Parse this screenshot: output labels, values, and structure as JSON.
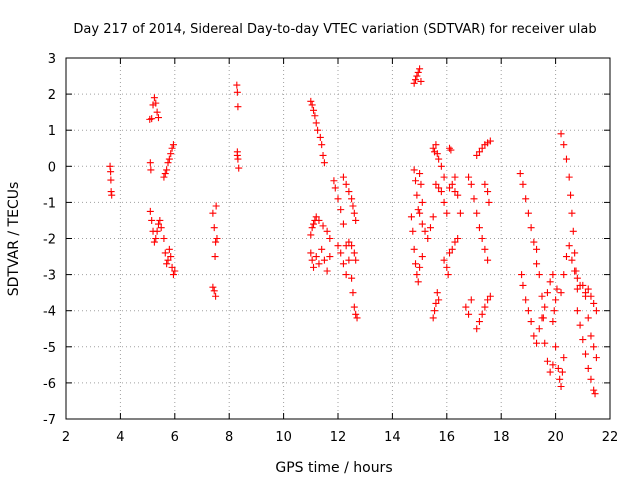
{
  "chart_data": {
    "type": "scatter",
    "title": "Day 217 of 2014, Sidereal Day-to-day VTEC variation (SDTVAR) for receiver ulab",
    "xlabel": "GPS time / hours",
    "ylabel": "SDTVAR / TECUs",
    "xlim": [
      2,
      22
    ],
    "ylim": [
      -7,
      3
    ],
    "xticks": [
      2,
      4,
      6,
      8,
      10,
      12,
      14,
      16,
      18,
      20,
      22
    ],
    "yticks": [
      -7,
      -6,
      -5,
      -4,
      -3,
      -2,
      -1,
      0,
      1,
      2,
      3
    ],
    "grid": true,
    "marker": "+",
    "color": "#ff0000",
    "series": [
      {
        "name": "SDTVAR",
        "points": [
          [
            3.62,
            0.0
          ],
          [
            3.64,
            -0.15
          ],
          [
            3.65,
            -0.38
          ],
          [
            3.66,
            -0.7
          ],
          [
            3.68,
            -0.8
          ],
          [
            5.08,
            1.3
          ],
          [
            5.15,
            1.32
          ],
          [
            5.2,
            1.7
          ],
          [
            5.25,
            1.9
          ],
          [
            5.3,
            1.75
          ],
          [
            5.35,
            1.5
          ],
          [
            5.4,
            1.35
          ],
          [
            5.1,
            0.1
          ],
          [
            5.12,
            -0.1
          ],
          [
            5.1,
            -1.25
          ],
          [
            5.15,
            -1.5
          ],
          [
            5.2,
            -1.8
          ],
          [
            5.25,
            -2.1
          ],
          [
            5.3,
            -2.0
          ],
          [
            5.35,
            -1.8
          ],
          [
            5.4,
            -1.6
          ],
          [
            5.45,
            -1.5
          ],
          [
            5.5,
            -1.7
          ],
          [
            5.6,
            -0.3
          ],
          [
            5.65,
            -0.2
          ],
          [
            5.7,
            -0.1
          ],
          [
            5.75,
            0.1
          ],
          [
            5.8,
            0.2
          ],
          [
            5.85,
            0.35
          ],
          [
            5.9,
            0.5
          ],
          [
            5.95,
            0.6
          ],
          [
            5.6,
            -2.0
          ],
          [
            5.65,
            -2.4
          ],
          [
            5.7,
            -2.7
          ],
          [
            5.75,
            -2.6
          ],
          [
            5.8,
            -2.3
          ],
          [
            5.85,
            -2.5
          ],
          [
            5.9,
            -2.8
          ],
          [
            5.95,
            -3.0
          ],
          [
            6.0,
            -2.9
          ],
          [
            7.4,
            -1.3
          ],
          [
            7.45,
            -1.7
          ],
          [
            7.5,
            -2.1
          ],
          [
            7.48,
            -2.5
          ],
          [
            7.52,
            -1.1
          ],
          [
            7.55,
            -2.0
          ],
          [
            7.4,
            -3.35
          ],
          [
            7.45,
            -3.45
          ],
          [
            7.5,
            -3.6
          ],
          [
            8.28,
            2.25
          ],
          [
            8.3,
            2.05
          ],
          [
            8.32,
            1.65
          ],
          [
            8.3,
            0.4
          ],
          [
            8.32,
            0.2
          ],
          [
            8.35,
            -0.05
          ],
          [
            8.3,
            0.3
          ],
          [
            11.0,
            1.8
          ],
          [
            11.05,
            1.7
          ],
          [
            11.1,
            1.55
          ],
          [
            11.15,
            1.4
          ],
          [
            11.2,
            1.2
          ],
          [
            11.25,
            1.0
          ],
          [
            11.35,
            0.8
          ],
          [
            11.4,
            0.6
          ],
          [
            11.45,
            0.3
          ],
          [
            11.5,
            0.1
          ],
          [
            11.0,
            -1.9
          ],
          [
            11.05,
            -1.7
          ],
          [
            11.1,
            -1.6
          ],
          [
            11.15,
            -1.5
          ],
          [
            11.2,
            -1.4
          ],
          [
            11.3,
            -1.5
          ],
          [
            11.45,
            -1.65
          ],
          [
            11.6,
            -1.8
          ],
          [
            11.7,
            -2.0
          ],
          [
            11.0,
            -2.4
          ],
          [
            11.05,
            -2.6
          ],
          [
            11.1,
            -2.8
          ],
          [
            11.2,
            -2.5
          ],
          [
            11.3,
            -2.7
          ],
          [
            11.4,
            -2.3
          ],
          [
            11.5,
            -2.6
          ],
          [
            11.6,
            -2.9
          ],
          [
            11.7,
            -2.5
          ],
          [
            11.85,
            -0.4
          ],
          [
            11.9,
            -0.6
          ],
          [
            12.0,
            -0.9
          ],
          [
            12.1,
            -1.2
          ],
          [
            12.2,
            -1.6
          ],
          [
            12.3,
            -2.2
          ],
          [
            12.4,
            -2.6
          ],
          [
            12.5,
            -3.1
          ],
          [
            12.55,
            -3.5
          ],
          [
            12.6,
            -3.9
          ],
          [
            12.65,
            -4.1
          ],
          [
            12.7,
            -4.2
          ],
          [
            12.2,
            -0.3
          ],
          [
            12.3,
            -0.5
          ],
          [
            12.4,
            -0.7
          ],
          [
            12.5,
            -0.9
          ],
          [
            12.55,
            -1.1
          ],
          [
            12.6,
            -1.3
          ],
          [
            12.65,
            -1.5
          ],
          [
            12.4,
            -2.1
          ],
          [
            12.5,
            -2.2
          ],
          [
            12.6,
            -2.4
          ],
          [
            12.65,
            -2.6
          ],
          [
            12.0,
            -2.2
          ],
          [
            12.1,
            -2.4
          ],
          [
            12.2,
            -2.7
          ],
          [
            12.3,
            -3.0
          ],
          [
            14.8,
            2.3
          ],
          [
            14.85,
            2.4
          ],
          [
            14.9,
            2.5
          ],
          [
            14.95,
            2.6
          ],
          [
            15.0,
            2.7
          ],
          [
            15.05,
            2.35
          ],
          [
            14.8,
            -0.1
          ],
          [
            14.85,
            -0.4
          ],
          [
            14.9,
            -0.8
          ],
          [
            14.95,
            -1.2
          ],
          [
            15.0,
            -0.2
          ],
          [
            15.05,
            -0.5
          ],
          [
            15.1,
            -1.0
          ],
          [
            14.7,
            -1.4
          ],
          [
            14.75,
            -1.8
          ],
          [
            14.8,
            -2.3
          ],
          [
            14.85,
            -2.7
          ],
          [
            14.9,
            -3.0
          ],
          [
            14.95,
            -3.2
          ],
          [
            15.0,
            -2.8
          ],
          [
            15.1,
            -2.5
          ],
          [
            15.0,
            -1.3
          ],
          [
            15.1,
            -1.6
          ],
          [
            15.2,
            -1.8
          ],
          [
            15.3,
            -2.0
          ],
          [
            15.4,
            -1.7
          ],
          [
            15.5,
            -1.4
          ],
          [
            15.5,
            -4.2
          ],
          [
            15.55,
            -4.0
          ],
          [
            15.6,
            -3.8
          ],
          [
            15.65,
            -3.5
          ],
          [
            15.7,
            -3.7
          ],
          [
            15.5,
            0.5
          ],
          [
            15.55,
            0.4
          ],
          [
            15.6,
            0.6
          ],
          [
            15.65,
            0.35
          ],
          [
            15.7,
            0.2
          ],
          [
            15.8,
            0.0
          ],
          [
            15.9,
            -0.3
          ],
          [
            15.6,
            -0.5
          ],
          [
            15.7,
            -0.6
          ],
          [
            15.8,
            -0.7
          ],
          [
            15.9,
            -1.0
          ],
          [
            16.0,
            -1.3
          ],
          [
            16.1,
            -0.6
          ],
          [
            16.2,
            -0.5
          ],
          [
            16.3,
            -0.7
          ],
          [
            15.9,
            -2.6
          ],
          [
            16.0,
            -2.8
          ],
          [
            16.05,
            -3.0
          ],
          [
            16.1,
            -2.4
          ],
          [
            16.2,
            -2.3
          ],
          [
            16.3,
            -2.1
          ],
          [
            16.4,
            -2.0
          ],
          [
            16.1,
            0.5
          ],
          [
            16.15,
            0.45
          ],
          [
            16.3,
            -0.3
          ],
          [
            16.4,
            -0.8
          ],
          [
            16.5,
            -1.3
          ],
          [
            16.8,
            -0.3
          ],
          [
            16.9,
            -0.5
          ],
          [
            17.0,
            -0.9
          ],
          [
            17.1,
            -1.3
          ],
          [
            17.2,
            -1.7
          ],
          [
            17.3,
            -2.0
          ],
          [
            17.4,
            -2.3
          ],
          [
            17.5,
            -2.6
          ],
          [
            16.7,
            -3.9
          ],
          [
            16.8,
            -4.1
          ],
          [
            16.9,
            -3.7
          ],
          [
            17.1,
            0.3
          ],
          [
            17.2,
            0.4
          ],
          [
            17.3,
            0.5
          ],
          [
            17.4,
            0.6
          ],
          [
            17.5,
            0.65
          ],
          [
            17.6,
            0.7
          ],
          [
            17.1,
            -4.5
          ],
          [
            17.2,
            -4.3
          ],
          [
            17.3,
            -4.1
          ],
          [
            17.4,
            -3.9
          ],
          [
            17.5,
            -3.7
          ],
          [
            17.6,
            -3.6
          ],
          [
            17.4,
            -0.5
          ],
          [
            17.5,
            -0.7
          ],
          [
            17.55,
            -1.0
          ],
          [
            18.7,
            -0.2
          ],
          [
            18.8,
            -0.5
          ],
          [
            18.9,
            -0.9
          ],
          [
            19.0,
            -1.3
          ],
          [
            19.1,
            -1.7
          ],
          [
            19.2,
            -2.1
          ],
          [
            19.3,
            -2.3
          ],
          [
            18.75,
            -3.0
          ],
          [
            18.8,
            -3.3
          ],
          [
            18.9,
            -3.7
          ],
          [
            19.0,
            -4.0
          ],
          [
            19.1,
            -4.3
          ],
          [
            19.2,
            -4.7
          ],
          [
            19.3,
            -4.9
          ],
          [
            19.4,
            -4.5
          ],
          [
            19.5,
            -4.2
          ],
          [
            19.6,
            -3.9
          ],
          [
            19.7,
            -3.5
          ],
          [
            19.8,
            -3.2
          ],
          [
            19.9,
            -3.0
          ],
          [
            19.3,
            -2.7
          ],
          [
            19.4,
            -3.0
          ],
          [
            19.5,
            -3.6
          ],
          [
            19.55,
            -4.2
          ],
          [
            19.6,
            -4.9
          ],
          [
            19.7,
            -5.4
          ],
          [
            19.8,
            -5.7
          ],
          [
            19.9,
            -5.5
          ],
          [
            20.0,
            -5.0
          ],
          [
            19.9,
            -4.3
          ],
          [
            19.95,
            -4.0
          ],
          [
            20.0,
            -3.7
          ],
          [
            20.05,
            -3.4
          ],
          [
            20.1,
            -5.6
          ],
          [
            20.15,
            -5.9
          ],
          [
            20.2,
            -6.1
          ],
          [
            20.25,
            -5.7
          ],
          [
            20.3,
            -5.3
          ],
          [
            20.2,
            0.9
          ],
          [
            20.3,
            0.6
          ],
          [
            20.4,
            0.2
          ],
          [
            20.5,
            -0.3
          ],
          [
            20.55,
            -0.8
          ],
          [
            20.6,
            -1.3
          ],
          [
            20.65,
            -1.8
          ],
          [
            20.7,
            -2.4
          ],
          [
            20.75,
            -2.9
          ],
          [
            20.8,
            -3.4
          ],
          [
            20.2,
            -3.5
          ],
          [
            20.3,
            -3.0
          ],
          [
            20.4,
            -2.5
          ],
          [
            20.5,
            -2.2
          ],
          [
            20.6,
            -2.6
          ],
          [
            20.7,
            -2.9
          ],
          [
            20.8,
            -3.1
          ],
          [
            20.9,
            -3.3
          ],
          [
            20.8,
            -4.0
          ],
          [
            20.9,
            -4.4
          ],
          [
            21.0,
            -4.8
          ],
          [
            21.1,
            -5.2
          ],
          [
            21.2,
            -5.6
          ],
          [
            21.3,
            -5.9
          ],
          [
            21.4,
            -6.2
          ],
          [
            21.45,
            -6.3
          ],
          [
            21.0,
            -3.3
          ],
          [
            21.1,
            -3.6
          ],
          [
            21.2,
            -4.2
          ],
          [
            21.3,
            -4.7
          ],
          [
            21.4,
            -5.0
          ],
          [
            21.5,
            -5.3
          ],
          [
            21.1,
            -3.5
          ],
          [
            21.2,
            -3.4
          ],
          [
            21.3,
            -3.6
          ],
          [
            21.4,
            -3.8
          ],
          [
            21.5,
            -4.0
          ]
        ]
      }
    ]
  }
}
